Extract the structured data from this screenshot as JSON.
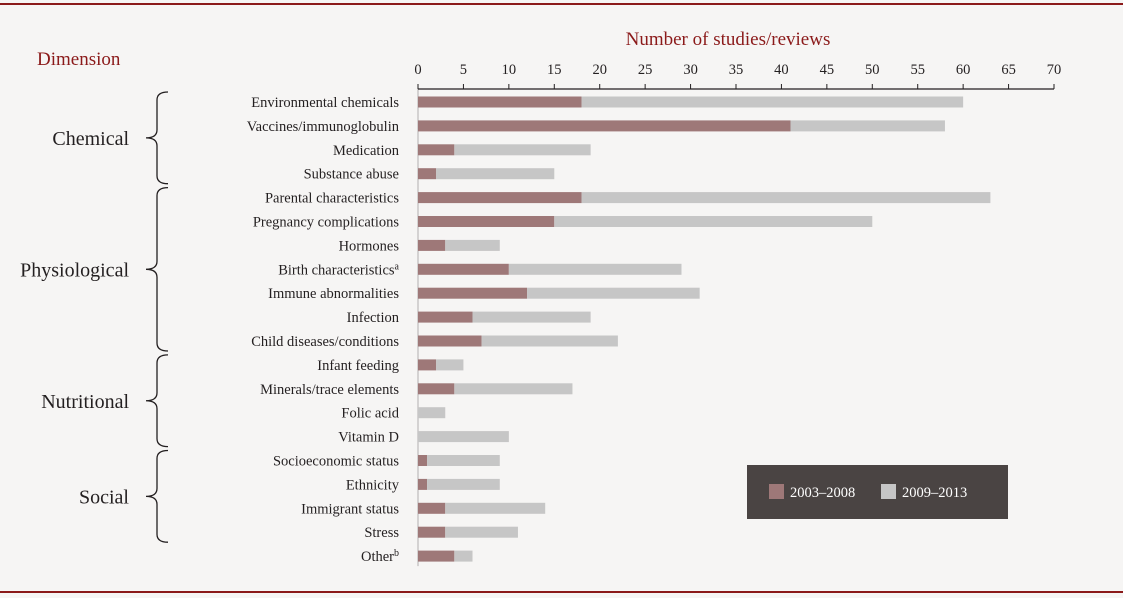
{
  "chart_data": {
    "type": "bar",
    "orientation": "horizontal",
    "stacked": true,
    "title": "Number of studies/reviews",
    "group_header": "Dimension",
    "xlim": [
      0,
      70
    ],
    "xticks": [
      0,
      5,
      10,
      15,
      20,
      25,
      30,
      35,
      40,
      45,
      50,
      55,
      60,
      65,
      70
    ],
    "grid": false,
    "legend_position": "bottom-right",
    "groups": [
      {
        "label": "Chemical",
        "start": 0,
        "end": 3
      },
      {
        "label": "Physiological",
        "start": 4,
        "end": 10
      },
      {
        "label": "Nutritional",
        "start": 11,
        "end": 14
      },
      {
        "label": "Social",
        "start": 15,
        "end": 18
      }
    ],
    "categories": [
      {
        "label": "Environmental chemicals",
        "sup": ""
      },
      {
        "label": "Vaccines/immunoglobulin",
        "sup": ""
      },
      {
        "label": "Medication",
        "sup": ""
      },
      {
        "label": "Substance abuse",
        "sup": ""
      },
      {
        "label": "Parental characteristics",
        "sup": ""
      },
      {
        "label": "Pregnancy complications",
        "sup": ""
      },
      {
        "label": "Hormones",
        "sup": ""
      },
      {
        "label": "Birth characteristics",
        "sup": "a"
      },
      {
        "label": "Immune abnormalities",
        "sup": ""
      },
      {
        "label": "Infection",
        "sup": ""
      },
      {
        "label": "Child diseases/conditions",
        "sup": ""
      },
      {
        "label": "Infant feeding",
        "sup": ""
      },
      {
        "label": "Minerals/trace elements",
        "sup": ""
      },
      {
        "label": "Folic acid",
        "sup": ""
      },
      {
        "label": "Vitamin D",
        "sup": ""
      },
      {
        "label": "Socioeconomic status",
        "sup": ""
      },
      {
        "label": "Ethnicity",
        "sup": ""
      },
      {
        "label": "Immigrant status",
        "sup": ""
      },
      {
        "label": "Stress",
        "sup": ""
      },
      {
        "label": "Other",
        "sup": "b"
      }
    ],
    "series": [
      {
        "name": "2003–2008",
        "color": "#9e7878",
        "values": [
          18,
          41,
          4,
          2,
          18,
          15,
          3,
          10,
          12,
          6,
          7,
          2,
          4,
          0,
          0,
          1,
          1,
          3,
          3,
          4
        ]
      },
      {
        "name": "2009–2013",
        "color": "#c6c6c6",
        "values": [
          42,
          17,
          15,
          13,
          45,
          35,
          6,
          19,
          19,
          13,
          15,
          3,
          13,
          3,
          10,
          8,
          8,
          11,
          8,
          2
        ]
      }
    ],
    "legend_bg": "#4a4443",
    "title_color": "#8b1a1a"
  }
}
